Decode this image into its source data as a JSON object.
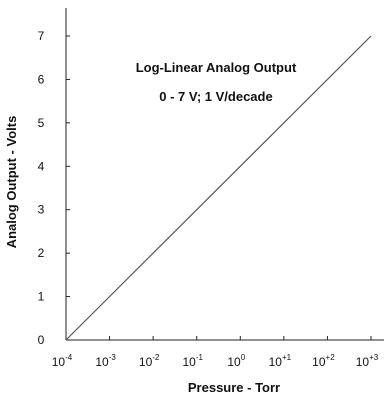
{
  "chart_data": {
    "type": "line",
    "title": "",
    "annotations": [
      "Log-Linear  Analog Output",
      "0 - 7 V;  1 V/decade"
    ],
    "xlabel": "Pressure - Torr",
    "ylabel": "Analog Output - Volts",
    "x_scale": "log",
    "xlim": [
      0.0001,
      1000
    ],
    "ylim": [
      0,
      7
    ],
    "x_ticks": [
      {
        "base": "10",
        "exp": "-4",
        "value": 0.0001
      },
      {
        "base": "10",
        "exp": "-3",
        "value": 0.001
      },
      {
        "base": "10",
        "exp": "-2",
        "value": 0.01
      },
      {
        "base": "10",
        "exp": "-1",
        "value": 0.1
      },
      {
        "base": "10",
        "exp": "0",
        "value": 1
      },
      {
        "base": "10",
        "exp": "+1",
        "value": 10
      },
      {
        "base": "10",
        "exp": "+2",
        "value": 100
      },
      {
        "base": "10",
        "exp": "+3",
        "value": 1000
      }
    ],
    "y_ticks": [
      "0",
      "1",
      "2",
      "3",
      "4",
      "5",
      "6",
      "7"
    ],
    "grid": false,
    "series": [
      {
        "x": [
          0.0001,
          1000
        ],
        "y": [
          0,
          7
        ]
      }
    ],
    "line_color": "#555555"
  }
}
